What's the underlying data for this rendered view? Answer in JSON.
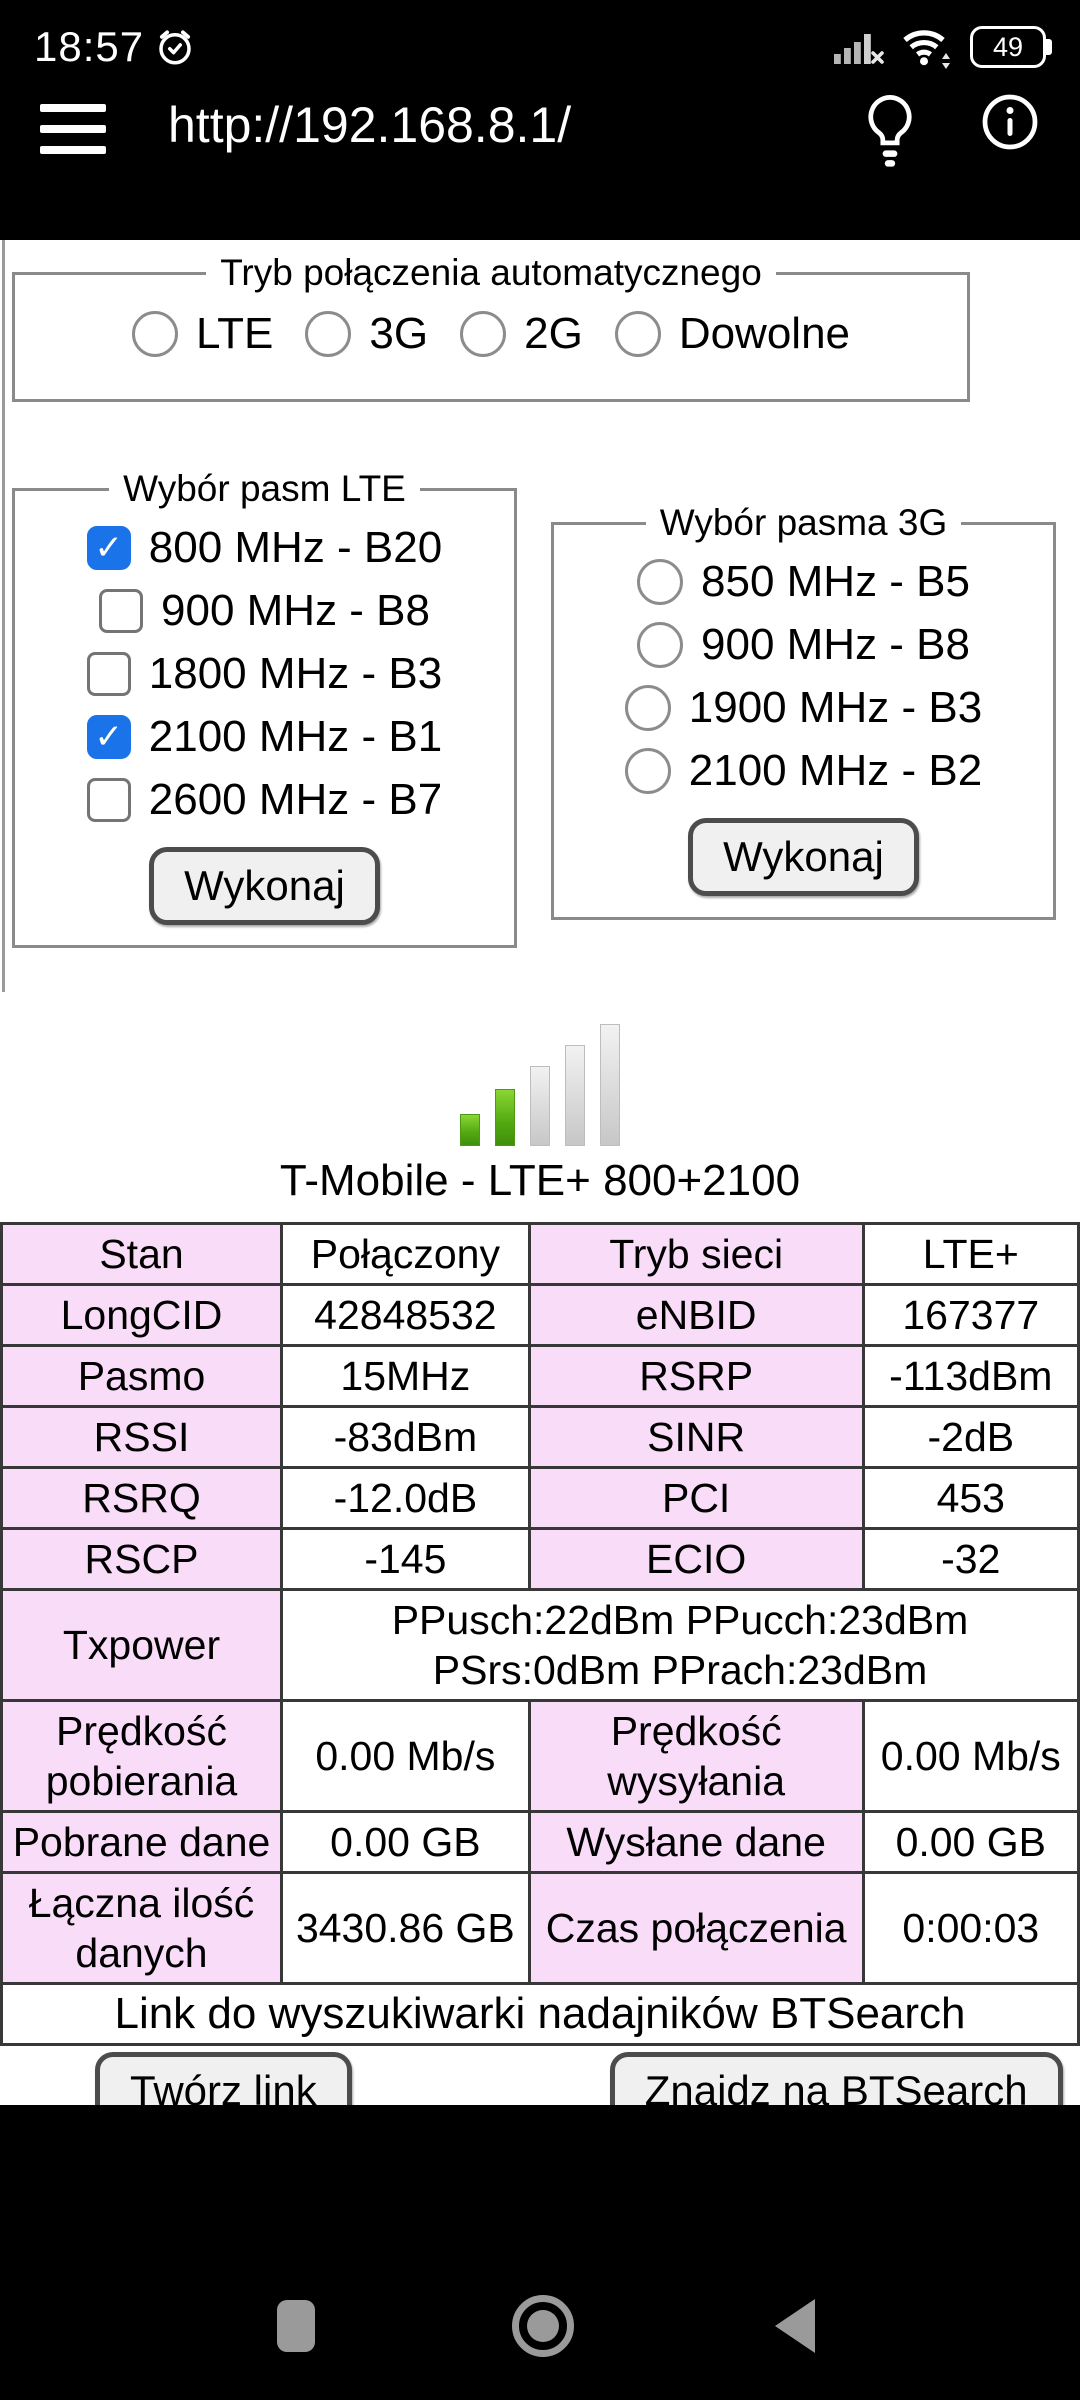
{
  "status_bar": {
    "time": "18:57",
    "battery_percent": "49"
  },
  "browser": {
    "url": "http://192.168.8.1/"
  },
  "auto_mode": {
    "legend": "Tryb połączenia automatycznego",
    "options": [
      {
        "label": "LTE",
        "checked": false
      },
      {
        "label": "3G",
        "checked": false
      },
      {
        "label": "2G",
        "checked": false
      },
      {
        "label": "Dowolne",
        "checked": false
      }
    ]
  },
  "lte_bands": {
    "legend": "Wybór pasm LTE",
    "options": [
      {
        "label": "800 MHz - B20",
        "checked": true
      },
      {
        "label": "900 MHz - B8",
        "checked": false
      },
      {
        "label": "1800 MHz - B3",
        "checked": false
      },
      {
        "label": "2100 MHz - B1",
        "checked": true
      },
      {
        "label": "2600 MHz - B7",
        "checked": false
      }
    ],
    "apply_label": "Wykonaj"
  },
  "bands_3g": {
    "legend": "Wybór pasma 3G",
    "options": [
      {
        "label": "850 MHz - B5",
        "checked": false
      },
      {
        "label": "900 MHz - B8",
        "checked": false
      },
      {
        "label": "1900 MHz - B3",
        "checked": false
      },
      {
        "label": "2100 MHz - B2",
        "checked": false
      }
    ],
    "apply_label": "Wykonaj"
  },
  "signal": {
    "bars_total": 5,
    "bars_active": 2,
    "operator_line": "T-Mobile - LTE+ 800+2100"
  },
  "status_table": {
    "rows": [
      {
        "cells": [
          {
            "text": "Stan",
            "type": "label"
          },
          {
            "text": "Połączony",
            "type": "value"
          },
          {
            "text": "Tryb sieci",
            "type": "label"
          },
          {
            "text": "LTE+",
            "type": "value"
          }
        ]
      },
      {
        "cells": [
          {
            "text": "LongCID",
            "type": "label"
          },
          {
            "text": "42848532",
            "type": "value"
          },
          {
            "text": "eNBID",
            "type": "label"
          },
          {
            "text": "167377",
            "type": "value"
          }
        ]
      },
      {
        "cells": [
          {
            "text": "Pasmo",
            "type": "label"
          },
          {
            "text": "15MHz",
            "type": "value"
          },
          {
            "text": "RSRP",
            "type": "label"
          },
          {
            "text": "-113dBm",
            "type": "value"
          }
        ]
      },
      {
        "cells": [
          {
            "text": "RSSI",
            "type": "label"
          },
          {
            "text": "-83dBm",
            "type": "value"
          },
          {
            "text": "SINR",
            "type": "label"
          },
          {
            "text": "-2dB",
            "type": "value"
          }
        ]
      },
      {
        "cells": [
          {
            "text": "RSRQ",
            "type": "label"
          },
          {
            "text": "-12.0dB",
            "type": "value"
          },
          {
            "text": "PCI",
            "type": "label"
          },
          {
            "text": "453",
            "type": "value"
          }
        ]
      },
      {
        "cells": [
          {
            "text": "RSCP",
            "type": "label"
          },
          {
            "text": "-145",
            "type": "value"
          },
          {
            "text": "ECIO",
            "type": "label"
          },
          {
            "text": "-32",
            "type": "value"
          }
        ]
      },
      {
        "cells": [
          {
            "text": "Txpower",
            "type": "label"
          },
          {
            "lines": [
              "PPusch:22dBm PPucch:23dBm",
              "PSrs:0dBm PPrach:23dBm"
            ],
            "type": "value",
            "colspan": 3
          }
        ]
      },
      {
        "cells": [
          {
            "text": "Prędkość pobierania",
            "type": "label"
          },
          {
            "text": "0.00 Mb/s",
            "type": "value"
          },
          {
            "text": "Prędkość wysyłania",
            "type": "label"
          },
          {
            "text": "0.00 Mb/s",
            "type": "value"
          }
        ]
      },
      {
        "cells": [
          {
            "text": "Pobrane dane",
            "type": "label"
          },
          {
            "text": "0.00 GB",
            "type": "value"
          },
          {
            "text": "Wysłane dane",
            "type": "label"
          },
          {
            "text": "0.00 GB",
            "type": "value"
          }
        ]
      },
      {
        "cells": [
          {
            "text": "Łączna ilość danych",
            "type": "label"
          },
          {
            "text": "3430.86 GB",
            "type": "value"
          },
          {
            "text": "Czas połączenia",
            "type": "label"
          },
          {
            "text": "0:00:03",
            "type": "value"
          }
        ]
      },
      {
        "cells": [
          {
            "text": "Link do wyszukiwarki nadajników BTSearch",
            "type": "linkrow",
            "colspan": 4
          }
        ]
      }
    ]
  },
  "actions": {
    "create_link": "Twórz link",
    "find_bts": "Znajdz na BTSearch"
  },
  "icons": {
    "checkmark": "✓"
  },
  "colors": {
    "checkbox_checked": "#1a73e8",
    "label_cell_bg": "#f8dcf8",
    "signal_green": "#52a811",
    "fieldset_border": "#8a8a8a",
    "nav_icon_gray": "#9a9a9a"
  }
}
